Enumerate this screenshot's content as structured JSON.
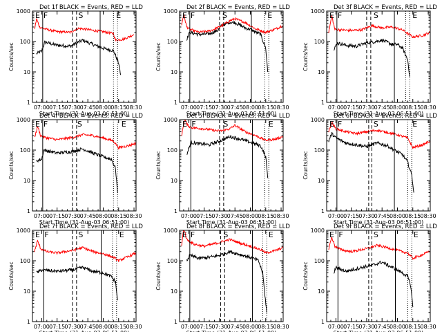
{
  "chart_data": {
    "type": "line",
    "layout": "3x3 grid of panels",
    "colors": {
      "events": "#000000",
      "lld": "#ff0000",
      "markers": "#000000"
    },
    "ylabel": "Counts/sec",
    "xlabel": "Start Time (31-Aug-03 06:51:00)",
    "x_tick_labels": [
      "07:00",
      "07:15",
      "07:30",
      "07:45",
      "08:00",
      "08:15",
      "08:30"
    ],
    "y_tick_labels": [
      "1",
      "10",
      "100",
      "1000"
    ],
    "y_scale": "log",
    "ylim": [
      1,
      1000
    ],
    "xlim": [
      "06:51",
      "08:32"
    ],
    "grid": false,
    "marker_labels": [
      "E",
      "F",
      "S",
      "E"
    ],
    "panels": [
      {
        "title": "Det 1f BLACK = Events, RED = LLD",
        "markers": {
          "E1": "06:53",
          "F": "07:01",
          "S_lines": [
            "07:30",
            "07:34"
          ],
          "S": "07:35",
          "solid_end": "07:57",
          "dotted": [
            "08:10",
            "08:14"
          ],
          "E2": "08:12"
        },
        "series": [
          {
            "name": "BLACK = Events",
            "x": [
              "06:55",
              "07:00",
              "07:03",
              "07:15",
              "07:28",
              "07:31",
              "07:40",
              "07:50",
              "08:00",
              "08:10",
              "08:12",
              "08:15",
              "08:17"
            ],
            "values": [
              40,
              48,
              95,
              75,
              70,
              80,
              110,
              80,
              60,
              50,
              35,
              20,
              8
            ]
          },
          {
            "name": "RED = LLD",
            "x": [
              "06:53",
              "06:55",
              "06:58",
              "07:03",
              "07:15",
              "07:28",
              "07:35",
              "07:45",
              "07:50",
              "08:00",
              "08:10",
              "08:12",
              "08:20",
              "08:30"
            ],
            "values": [
              250,
              550,
              300,
              260,
              210,
              200,
              270,
              250,
              230,
              210,
              180,
              110,
              120,
              170
            ]
          }
        ]
      },
      {
        "title": "Det 2f BLACK = Events, RED = LLD",
        "markers": {
          "E1": "06:53",
          "F": "07:01",
          "S_lines": [
            "07:30",
            "07:34"
          ],
          "S": "07:32",
          "solid_end": "08:01",
          "dotted": [
            "08:14",
            "08:18"
          ],
          "E2": "08:16"
        },
        "series": [
          {
            "name": "BLACK = Events",
            "x": [
              "06:58",
              "07:01",
              "07:10",
              "07:20",
              "07:28",
              "07:32",
              "07:40",
              "07:45",
              "07:55",
              "08:00",
              "08:10",
              "08:15",
              "08:17"
            ],
            "values": [
              120,
              200,
              170,
              180,
              230,
              330,
              430,
              420,
              280,
              250,
              170,
              60,
              10
            ]
          },
          {
            "name": "RED = LLD",
            "x": [
              "06:53",
              "06:55",
              "06:58",
              "07:01",
              "07:10",
              "07:20",
              "07:30",
              "07:40",
              "07:45",
              "07:55",
              "08:05",
              "08:15",
              "08:25",
              "08:32"
            ],
            "values": [
              350,
              800,
              300,
              250,
              200,
              220,
              300,
              480,
              560,
              420,
              260,
              200,
              260,
              340
            ]
          }
        ]
      },
      {
        "title": "Det 3f BLACK = Events, RED = LLD",
        "markers": {
          "E1": "06:53",
          "F": "07:01",
          "S_lines": [
            "07:30",
            "07:34"
          ],
          "S": "07:36",
          "solid_end": "07:57",
          "dotted": [
            "08:08",
            "08:12"
          ],
          "E2": "08:14"
        },
        "series": [
          {
            "name": "BLACK = Events",
            "x": [
              "06:58",
              "07:01",
              "07:10",
              "07:20",
              "07:30",
              "07:35",
              "07:45",
              "07:55",
              "08:00",
              "08:05",
              "08:08",
              "08:10",
              "08:12"
            ],
            "values": [
              50,
              90,
              75,
              70,
              90,
              95,
              110,
              80,
              80,
              60,
              35,
              25,
              7
            ]
          },
          {
            "name": "RED = LLD",
            "x": [
              "06:53",
              "06:56",
              "06:59",
              "07:05",
              "07:15",
              "07:25",
              "07:35",
              "07:45",
              "07:55",
              "08:05",
              "08:15",
              "08:25",
              "08:32"
            ],
            "values": [
              200,
              700,
              250,
              240,
              230,
              240,
              330,
              280,
              300,
              240,
              140,
              160,
              200
            ]
          }
        ]
      },
      {
        "title": "Det 4f BLACK = Events, RED = LLD",
        "markers": {
          "E1": "06:53",
          "F": "07:01",
          "S_lines": [
            "07:30",
            "07:34"
          ],
          "S": "07:34",
          "solid_end": "07:57",
          "dotted": [
            "08:10",
            "08:14"
          ],
          "E2": "08:17"
        },
        "series": [
          {
            "name": "BLACK = Events",
            "x": [
              "06:55",
              "07:00",
              "07:02",
              "07:15",
              "07:30",
              "07:40",
              "07:50",
              "08:00",
              "08:08",
              "08:12",
              "08:14"
            ],
            "values": [
              45,
              50,
              100,
              80,
              90,
              110,
              80,
              60,
              50,
              25,
              4
            ]
          },
          {
            "name": "RED = LLD",
            "x": [
              "06:53",
              "06:56",
              "06:59",
              "07:03",
              "07:15",
              "07:30",
              "07:40",
              "07:50",
              "08:00",
              "08:10",
              "08:15",
              "08:25",
              "08:32"
            ],
            "values": [
              250,
              600,
              300,
              260,
              220,
              260,
              320,
              300,
              250,
              200,
              120,
              140,
              170
            ]
          }
        ]
      },
      {
        "title": "Det 5f BLACK = Events, RED = LLD",
        "markers": {
          "E1": "06:53",
          "F": "07:02",
          "S_lines": [
            "07:30",
            "07:34"
          ],
          "S": "07:33",
          "solid_end": "08:02",
          "dotted": [
            "08:14",
            "08:18"
          ],
          "E2": "08:17"
        },
        "series": [
          {
            "name": "BLACK = Events",
            "x": [
              "06:58",
              "07:02",
              "07:10",
              "07:20",
              "07:30",
              "07:35",
              "07:40",
              "07:50",
              "08:00",
              "08:10",
              "08:15",
              "08:17"
            ],
            "values": [
              70,
              180,
              160,
              150,
              200,
              230,
              280,
              230,
              180,
              140,
              60,
              12
            ]
          },
          {
            "name": "RED = LLD",
            "x": [
              "06:53",
              "06:56",
              "06:58",
              "07:02",
              "07:15",
              "07:30",
              "07:40",
              "07:45",
              "07:55",
              "08:05",
              "08:15",
              "08:25",
              "08:32"
            ],
            "values": [
              300,
              1100,
              700,
              550,
              500,
              420,
              500,
              650,
              400,
              300,
              210,
              230,
              280
            ]
          }
        ]
      },
      {
        "title": "Det 6f BLACK = Events, RED = LLD",
        "markers": {
          "E1": "06:53",
          "F": "07:01",
          "S_lines": [
            "07:32",
            "07:35"
          ],
          "S": "07:36",
          "solid_end": "07:57",
          "dotted": [
            "08:10",
            "08:14"
          ],
          "E2": "08:14"
        },
        "series": [
          {
            "name": "BLACK = Events",
            "x": [
              "06:53",
              "06:56",
              "07:00",
              "07:10",
              "07:20",
              "07:30",
              "07:40",
              "07:50",
              "07:57",
              "08:05",
              "08:10",
              "08:14",
              "08:16"
            ],
            "values": [
              200,
              350,
              250,
              170,
              150,
              130,
              170,
              140,
              100,
              70,
              40,
              15,
              4
            ]
          },
          {
            "name": "RED = LLD",
            "x": [
              "06:53",
              "06:56",
              "07:00",
              "07:10",
              "07:20",
              "07:30",
              "07:40",
              "07:50",
              "08:00",
              "08:10",
              "08:15",
              "08:25",
              "08:32"
            ],
            "values": [
              400,
              800,
              500,
              400,
              350,
              400,
              450,
              380,
              320,
              250,
              120,
              150,
              200
            ]
          }
        ]
      },
      {
        "title": "Det 7f BLACK = Events, RED = LLD",
        "markers": {
          "E1": "06:53",
          "F": "07:02",
          "S_lines": [
            "07:30",
            "07:34"
          ],
          "S": "07:35",
          "solid_end": "07:58",
          "dotted": [
            "08:09",
            "08:13"
          ],
          "E2": "08:15"
        },
        "series": [
          {
            "name": "BLACK = Events",
            "x": [
              "06:55",
              "07:00",
              "07:15",
              "07:30",
              "07:40",
              "07:50",
              "08:00",
              "08:08",
              "08:12",
              "08:14"
            ],
            "values": [
              40,
              50,
              45,
              50,
              60,
              45,
              40,
              30,
              20,
              5
            ]
          },
          {
            "name": "RED = LLD",
            "x": [
              "06:53",
              "06:56",
              "06:59",
              "07:05",
              "07:15",
              "07:30",
              "07:40",
              "07:50",
              "08:00",
              "08:10",
              "08:15",
              "08:25",
              "08:32"
            ],
            "values": [
              200,
              450,
              250,
              200,
              180,
              220,
              270,
              200,
              170,
              130,
              100,
              140,
              180
            ]
          }
        ]
      },
      {
        "title": "Det 8f BLACK = Events, RED = LLD",
        "markers": {
          "E1": "06:53",
          "F": "07:01",
          "S_lines": [
            "07:31",
            "07:35"
          ],
          "S": "07:33",
          "solid_end": "08:02",
          "dotted": [
            "08:12",
            "08:16"
          ],
          "E2": "08:17"
        },
        "series": [
          {
            "name": "BLACK = Events",
            "x": [
              "06:58",
              "07:01",
              "07:10",
              "07:20",
              "07:30",
              "07:40",
              "07:50",
              "08:00",
              "08:08",
              "08:12",
              "08:16"
            ],
            "values": [
              100,
              150,
              120,
              130,
              150,
              200,
              160,
              130,
              100,
              40,
              2
            ]
          },
          {
            "name": "RED = LLD",
            "x": [
              "06:53",
              "06:55",
              "06:58",
              "07:05",
              "07:15",
              "07:30",
              "07:40",
              "07:50",
              "08:00",
              "08:10",
              "08:15",
              "08:25",
              "08:32"
            ],
            "values": [
              300,
              1200,
              500,
              350,
              300,
              400,
              500,
              380,
              300,
              230,
              180,
              220,
              270
            ]
          }
        ]
      },
      {
        "title": "Det 9f BLACK = Events, RED = LLD",
        "markers": {
          "E1": "06:53",
          "F": "07:02",
          "S_lines": [
            "07:32",
            "07:35"
          ],
          "S": "07:36",
          "solid_end": "07:58",
          "dotted": [
            "08:10",
            "08:14"
          ],
          "E2": "08:15"
        },
        "series": [
          {
            "name": "BLACK = Events",
            "x": [
              "06:58",
              "07:00",
              "07:10",
              "07:25",
              "07:35",
              "07:45",
              "07:55",
              "08:05",
              "08:10",
              "08:13",
              "08:15"
            ],
            "values": [
              40,
              60,
              45,
              60,
              70,
              90,
              60,
              40,
              30,
              15,
              3
            ]
          },
          {
            "name": "RED = LLD",
            "x": [
              "06:53",
              "06:56",
              "06:59",
              "07:05",
              "07:15",
              "07:30",
              "07:40",
              "07:50",
              "08:00",
              "08:10",
              "08:15",
              "08:25",
              "08:32"
            ],
            "values": [
              250,
              600,
              300,
              230,
              200,
              250,
              320,
              270,
              220,
              180,
              120,
              160,
              210
            ]
          }
        ]
      }
    ]
  }
}
